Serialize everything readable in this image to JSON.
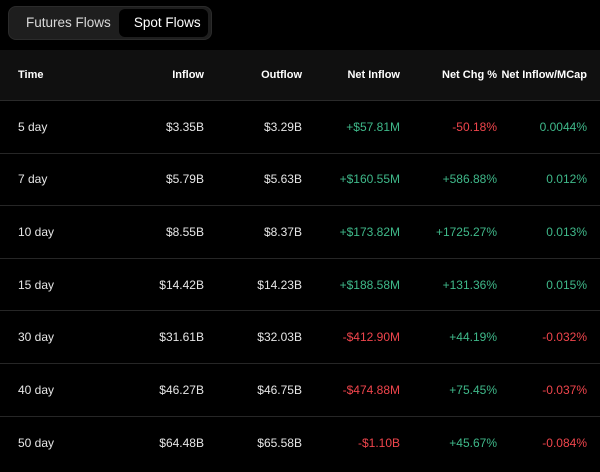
{
  "tabs": {
    "futures_label": "Futures Flows",
    "spot_label": "Spot Flows",
    "active": "Spot Flows"
  },
  "colors": {
    "positive": "#3fb98a",
    "negative": "#f0454c",
    "background": "#000000"
  },
  "table": {
    "headers": {
      "time": "Time",
      "inflow": "Inflow",
      "outflow": "Outflow",
      "net_inflow": "Net Inflow",
      "net_chg": "Net Chg %",
      "net_inflow_mcap": "Net Inflow/MCap"
    },
    "rows": [
      {
        "time": "5 day",
        "inflow": "$3.35B",
        "outflow": "$3.29B",
        "net_inflow": "+$57.81M",
        "net_inflow_sign": "pos",
        "net_chg": "-50.18%",
        "net_chg_sign": "neg",
        "mcap": "0.0044%",
        "mcap_sign": "pos"
      },
      {
        "time": "7 day",
        "inflow": "$5.79B",
        "outflow": "$5.63B",
        "net_inflow": "+$160.55M",
        "net_inflow_sign": "pos",
        "net_chg": "+586.88%",
        "net_chg_sign": "pos",
        "mcap": "0.012%",
        "mcap_sign": "pos"
      },
      {
        "time": "10 day",
        "inflow": "$8.55B",
        "outflow": "$8.37B",
        "net_inflow": "+$173.82M",
        "net_inflow_sign": "pos",
        "net_chg": "+1725.27%",
        "net_chg_sign": "pos",
        "mcap": "0.013%",
        "mcap_sign": "pos"
      },
      {
        "time": "15 day",
        "inflow": "$14.42B",
        "outflow": "$14.23B",
        "net_inflow": "+$188.58M",
        "net_inflow_sign": "pos",
        "net_chg": "+131.36%",
        "net_chg_sign": "pos",
        "mcap": "0.015%",
        "mcap_sign": "pos"
      },
      {
        "time": "30 day",
        "inflow": "$31.61B",
        "outflow": "$32.03B",
        "net_inflow": "-$412.90M",
        "net_inflow_sign": "neg",
        "net_chg": "+44.19%",
        "net_chg_sign": "pos",
        "mcap": "-0.032%",
        "mcap_sign": "neg"
      },
      {
        "time": "40 day",
        "inflow": "$46.27B",
        "outflow": "$46.75B",
        "net_inflow": "-$474.88M",
        "net_inflow_sign": "neg",
        "net_chg": "+75.45%",
        "net_chg_sign": "pos",
        "mcap": "-0.037%",
        "mcap_sign": "neg"
      },
      {
        "time": "50 day",
        "inflow": "$64.48B",
        "outflow": "$65.58B",
        "net_inflow": "-$1.10B",
        "net_inflow_sign": "neg",
        "net_chg": "+45.67%",
        "net_chg_sign": "pos",
        "mcap": "-0.084%",
        "mcap_sign": "neg"
      }
    ]
  }
}
